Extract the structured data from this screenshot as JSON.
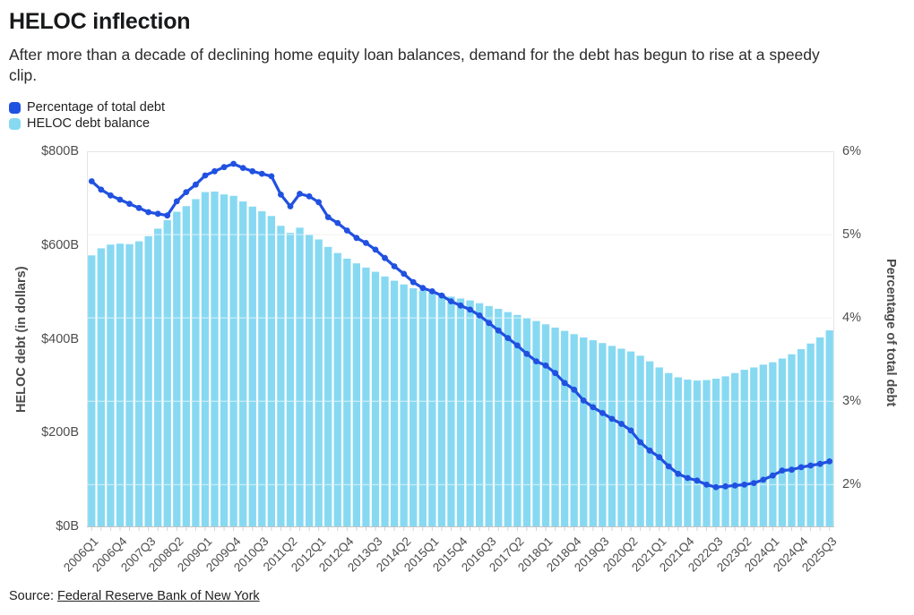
{
  "header": {
    "title": "HELOC inflection",
    "subtitle_line1": "After more than a decade of declining home equity loan balances, demand for the debt has begun to rise at a speedy",
    "subtitle_line2": "clip."
  },
  "legend": {
    "items": [
      {
        "label": "Percentage of total debt",
        "color": "#2051E0"
      },
      {
        "label": "HELOC debt balance",
        "color": "#87D9F2"
      }
    ]
  },
  "axes": {
    "left_title": "HELOC debt (in dollars)",
    "right_title": "Percentage of total debt",
    "left_tick_labels": [
      "$0B",
      "$200B",
      "$400B",
      "$600B",
      "$800B"
    ],
    "left_tick_values": [
      0,
      200,
      400,
      600,
      800
    ],
    "right_tick_labels": [
      "2%",
      "3%",
      "4%",
      "5%",
      "6%"
    ],
    "right_tick_values": [
      2,
      3,
      4,
      5,
      6
    ]
  },
  "source": {
    "prefix": "Source: ",
    "link_text": "Federal Reserve Bank of New York"
  },
  "colors": {
    "bar": "#87D9F2",
    "line": "#2051E0",
    "grid": "#e2e2e2",
    "grid_overlay": "rgba(255,255,255,0.5)",
    "baseline": "#c4c4c4",
    "tick": "#d2d2d2",
    "plot_border": "#e4e4e4"
  },
  "chart_data": {
    "type": "combo-bar-line",
    "title": "HELOC inflection",
    "categories": [
      "2006Q1",
      "2006Q2",
      "2006Q3",
      "2006Q4",
      "2007Q1",
      "2007Q2",
      "2007Q3",
      "2007Q4",
      "2008Q1",
      "2008Q2",
      "2008Q3",
      "2008Q4",
      "2009Q1",
      "2009Q2",
      "2009Q3",
      "2009Q4",
      "2010Q1",
      "2010Q2",
      "2010Q3",
      "2010Q4",
      "2011Q1",
      "2011Q2",
      "2011Q3",
      "2011Q4",
      "2012Q1",
      "2012Q2",
      "2012Q3",
      "2012Q4",
      "2013Q1",
      "2013Q2",
      "2013Q3",
      "2013Q4",
      "2014Q1",
      "2014Q2",
      "2014Q3",
      "2014Q4",
      "2015Q1",
      "2015Q2",
      "2015Q3",
      "2015Q4",
      "2016Q1",
      "2016Q2",
      "2016Q3",
      "2016Q4",
      "2017Q1",
      "2017Q2",
      "2017Q3",
      "2017Q4",
      "2018Q1",
      "2018Q2",
      "2018Q3",
      "2018Q4",
      "2019Q1",
      "2019Q2",
      "2019Q3",
      "2019Q4",
      "2020Q1",
      "2020Q2",
      "2020Q3",
      "2020Q4",
      "2021Q1",
      "2021Q2",
      "2021Q3",
      "2021Q4",
      "2022Q1",
      "2022Q2",
      "2022Q3",
      "2022Q4",
      "2023Q1",
      "2023Q2",
      "2023Q3",
      "2023Q4",
      "2024Q1",
      "2024Q2",
      "2024Q3",
      "2024Q4",
      "2025Q1",
      "2025Q2",
      "2025Q3"
    ],
    "series": [
      {
        "name": "HELOC debt balance",
        "type": "bar",
        "axis": "left",
        "unit": "$B",
        "values": [
          578,
          593,
          601,
          603,
          602,
          608,
          619,
          635,
          653,
          671,
          683,
          698,
          713,
          714,
          708,
          705,
          693,
          682,
          672,
          662,
          641,
          626,
          637,
          622,
          612,
          596,
          583,
          571,
          561,
          552,
          543,
          533,
          524,
          516,
          508,
          503,
          499,
          495,
          490,
          486,
          482,
          476,
          470,
          464,
          457,
          451,
          444,
          438,
          431,
          424,
          417,
          410,
          403,
          397,
          391,
          385,
          379,
          373,
          364,
          352,
          339,
          327,
          318,
          313,
          311,
          312,
          315,
          320,
          327,
          334,
          339,
          345,
          350,
          358,
          367,
          378,
          390,
          403,
          418
        ]
      },
      {
        "name": "Percentage of total debt",
        "type": "line",
        "axis": "right",
        "unit": "%",
        "values": [
          5.64,
          5.54,
          5.47,
          5.42,
          5.37,
          5.32,
          5.27,
          5.25,
          5.23,
          5.4,
          5.51,
          5.6,
          5.71,
          5.76,
          5.81,
          5.85,
          5.8,
          5.76,
          5.73,
          5.7,
          5.48,
          5.34,
          5.49,
          5.46,
          5.39,
          5.21,
          5.14,
          5.05,
          4.96,
          4.9,
          4.82,
          4.72,
          4.62,
          4.53,
          4.43,
          4.36,
          4.32,
          4.27,
          4.2,
          4.15,
          4.1,
          4.03,
          3.94,
          3.85,
          3.76,
          3.67,
          3.57,
          3.48,
          3.43,
          3.34,
          3.22,
          3.14,
          3.01,
          2.93,
          2.86,
          2.79,
          2.73,
          2.65,
          2.51,
          2.41,
          2.33,
          2.22,
          2.13,
          2.08,
          2.05,
          2.0,
          1.97,
          1.98,
          1.99,
          2.0,
          2.02,
          2.06,
          2.11,
          2.17,
          2.18,
          2.21,
          2.23,
          2.25,
          2.28
        ]
      }
    ],
    "xlabel": "",
    "ylabel_left": "HELOC debt (in dollars)",
    "ylabel_right": "Percentage of total debt",
    "ylim_left": [
      0,
      800
    ],
    "ylim_right": [
      1.5,
      6
    ],
    "x_label_every": 3,
    "grid": "horizontal-at-right-axis-ticks",
    "legend_position": "top-left"
  }
}
